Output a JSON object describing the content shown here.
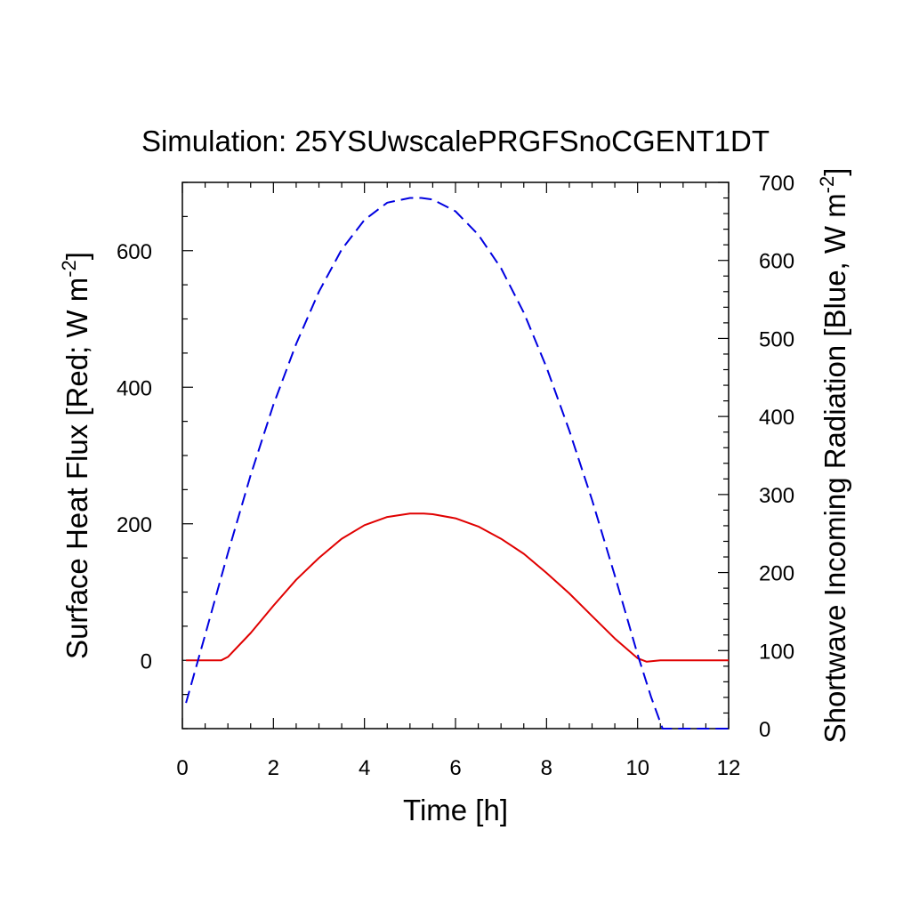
{
  "chart_data": {
    "type": "line",
    "title": "Simulation: 25YSUwscalePRGFSnoCGENT1DT",
    "xlabel": "Time [h]",
    "ylabel_left": {
      "text": "Surface Heat Flux [Red; W m",
      "superscript": "-2",
      "close": "]"
    },
    "ylabel_right": {
      "text": "Shortwave Incoming Radiation [Blue, W m",
      "superscript": "-2",
      "close": "]"
    },
    "xlim": [
      0,
      12
    ],
    "ylim_left": [
      -100,
      700
    ],
    "ylim_right": [
      0,
      700
    ],
    "x_ticks": [
      "0",
      "2",
      "4",
      "6",
      "8",
      "10",
      "12"
    ],
    "y_left_ticks": [
      "0",
      "200",
      "400",
      "600"
    ],
    "y_right_ticks": [
      "0",
      "100",
      "200",
      "300",
      "400",
      "500",
      "600",
      "700"
    ],
    "grid": false,
    "series": [
      {
        "axis": "left",
        "color": "#e00000",
        "style": "solid",
        "x": [
          0.08,
          0.5,
          0.85,
          1.0,
          1.5,
          2.0,
          2.5,
          3.0,
          3.5,
          4.0,
          4.5,
          5.0,
          5.3,
          5.5,
          6.0,
          6.5,
          7.0,
          7.5,
          8.0,
          8.5,
          9.0,
          9.5,
          10.0,
          10.2,
          10.5,
          11.0,
          11.5,
          12.0
        ],
        "y": [
          0,
          0,
          0,
          5,
          40,
          80,
          118,
          150,
          178,
          198,
          210,
          215,
          215,
          214,
          208,
          196,
          178,
          156,
          128,
          98,
          65,
          32,
          3,
          -2,
          0,
          0,
          0,
          0
        ]
      },
      {
        "axis": "right",
        "color": "#0000e0",
        "style": "dashed",
        "x": [
          0.08,
          0.5,
          1.0,
          1.5,
          2.0,
          2.5,
          3.0,
          3.5,
          4.0,
          4.5,
          5.0,
          5.25,
          5.5,
          6.0,
          6.5,
          7.0,
          7.5,
          8.0,
          8.5,
          9.0,
          9.5,
          10.0,
          10.3,
          10.55,
          11.0,
          11.5,
          12.0
        ],
        "y": [
          33,
          120,
          225,
          325,
          415,
          493,
          560,
          614,
          652,
          674,
          680,
          680,
          678,
          663,
          633,
          590,
          533,
          463,
          382,
          293,
          196,
          95,
          40,
          0,
          0,
          0,
          0
        ]
      }
    ]
  }
}
